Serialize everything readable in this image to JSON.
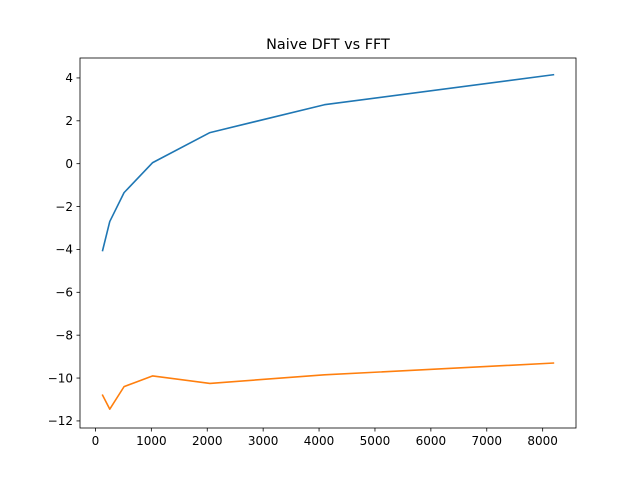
{
  "chart_data": {
    "type": "line",
    "title": "Naive DFT vs FFT",
    "xlabel": "",
    "ylabel": "",
    "x": [
      128,
      256,
      512,
      1024,
      2048,
      4096,
      8192
    ],
    "series": [
      {
        "color": "#1f77b4",
        "values": [
          -4.05,
          -2.7,
          -1.35,
          0.05,
          1.45,
          2.75,
          4.15
        ]
      },
      {
        "color": "#ff7f0e",
        "values": [
          -10.8,
          -11.45,
          -10.4,
          -9.9,
          -10.25,
          -9.85,
          -9.3
        ]
      }
    ],
    "xlim": [
      -276.2,
      8596.2
    ],
    "ylim": [
      -12.33,
      4.93
    ],
    "xticks": [
      0,
      1000,
      2000,
      3000,
      4000,
      5000,
      6000,
      7000,
      8000
    ],
    "xtick_labels": [
      "0",
      "1000",
      "2000",
      "3000",
      "4000",
      "5000",
      "6000",
      "7000",
      "8000"
    ],
    "yticks": [
      -12,
      -10,
      -8,
      -6,
      -4,
      -2,
      0,
      2,
      4
    ],
    "ytick_labels": [
      "−12",
      "−10",
      "−8",
      "−6",
      "−4",
      "−2",
      "0",
      "2",
      "4"
    ],
    "grid": false,
    "legend": "none"
  }
}
